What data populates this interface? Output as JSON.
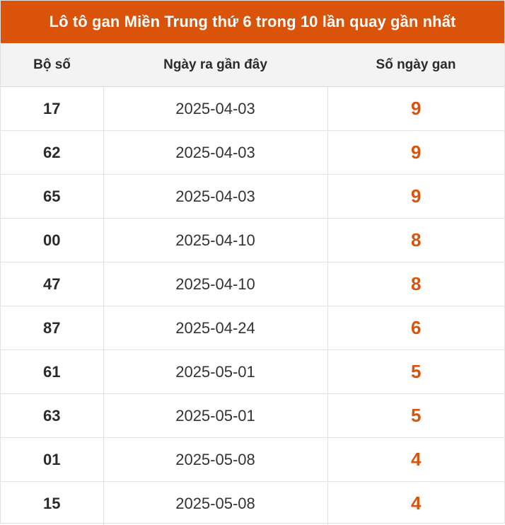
{
  "title": "Lô tô gan Miền Trung thứ 6 trong 10 lần quay gần nhất",
  "colors": {
    "header_bg": "#d9530b",
    "accent": "#d9530b"
  },
  "columns": [
    "Bộ số",
    "Ngày ra gần đây",
    "Số ngày gan"
  ],
  "rows": [
    {
      "so": "17",
      "ngay": "2025-04-03",
      "gan": "9"
    },
    {
      "so": "62",
      "ngay": "2025-04-03",
      "gan": "9"
    },
    {
      "so": "65",
      "ngay": "2025-04-03",
      "gan": "9"
    },
    {
      "so": "00",
      "ngay": "2025-04-10",
      "gan": "8"
    },
    {
      "so": "47",
      "ngay": "2025-04-10",
      "gan": "8"
    },
    {
      "so": "87",
      "ngay": "2025-04-24",
      "gan": "6"
    },
    {
      "so": "61",
      "ngay": "2025-05-01",
      "gan": "5"
    },
    {
      "so": "63",
      "ngay": "2025-05-01",
      "gan": "5"
    },
    {
      "so": "01",
      "ngay": "2025-05-08",
      "gan": "4"
    },
    {
      "so": "15",
      "ngay": "2025-05-08",
      "gan": "4"
    }
  ]
}
